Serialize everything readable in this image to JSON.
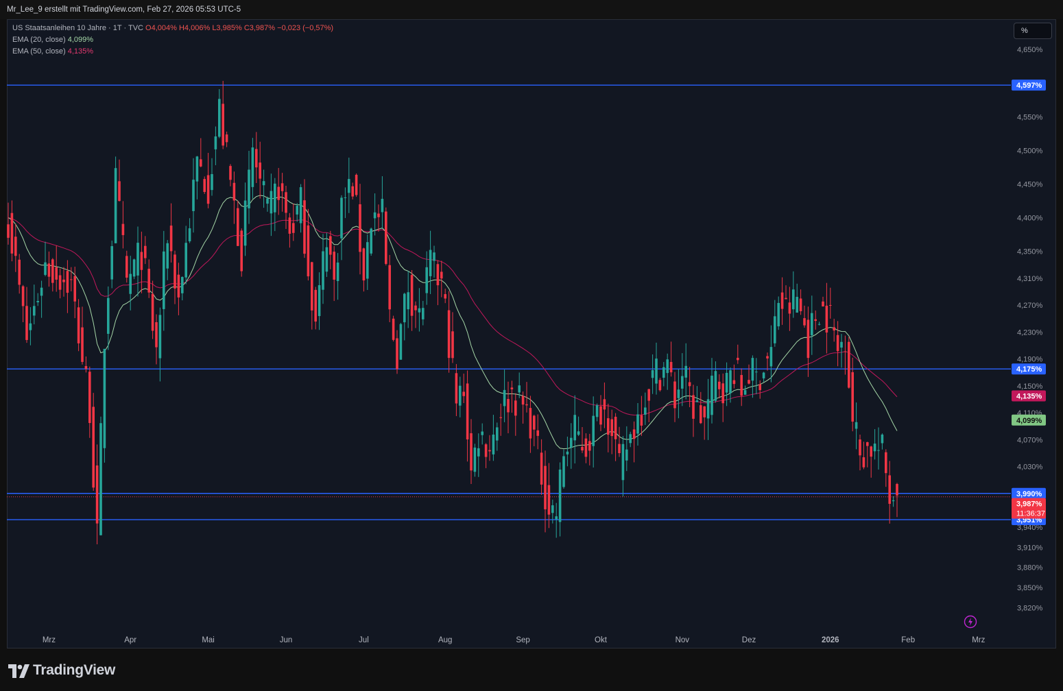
{
  "header": {
    "credit": "Mr_Lee_9 erstellt mit TradingView.com, Feb 27, 2026 05:53 UTC-5"
  },
  "legend": {
    "symbol": "US Staatsanleihen 10 Jahre · 1T · TVC",
    "o": "O4,004%",
    "h": "H4,006%",
    "l": "L3,985%",
    "c": "C3,987%",
    "change": "−0,023 (−0,57%)",
    "ema20_label": "EMA (20, close)",
    "ema20_value": "4,099%",
    "ema50_label": "EMA (50, close)",
    "ema50_value": "4,135%"
  },
  "scale_button": "%",
  "brand": {
    "name": "TradingView"
  },
  "colors": {
    "up": "#26a69a",
    "down": "#f23645",
    "ema20": "#a5d6a7",
    "ema50": "#c2185b",
    "hline": "#2962ff",
    "bg": "#121722"
  },
  "chart_data": {
    "type": "candlestick",
    "title": "US Staatsanleihen 10 Jahre",
    "unit": "%",
    "ylim": [
      3.79,
      4.695
    ],
    "y_ticks": [
      "4,650%",
      "4,550%",
      "4,500%",
      "4,450%",
      "4,400%",
      "4,350%",
      "4,310%",
      "4,270%",
      "4,230%",
      "4,190%",
      "4,150%",
      "4,110%",
      "4,070%",
      "4,030%",
      "3,940%",
      "3,910%",
      "3,880%",
      "3,850%",
      "3,820%"
    ],
    "y_tick_values": [
      4.65,
      4.55,
      4.5,
      4.45,
      4.4,
      4.35,
      4.31,
      4.27,
      4.23,
      4.19,
      4.15,
      4.11,
      4.07,
      4.03,
      3.94,
      3.91,
      3.88,
      3.85,
      3.82
    ],
    "x_labels": [
      {
        "day": 11,
        "label": "Mrz"
      },
      {
        "day": 33,
        "label": "Apr"
      },
      {
        "day": 54,
        "label": "Mai"
      },
      {
        "day": 75,
        "label": "Jun"
      },
      {
        "day": 96,
        "label": "Jul"
      },
      {
        "day": 118,
        "label": "Aug"
      },
      {
        "day": 139,
        "label": "Sep"
      },
      {
        "day": 160,
        "label": "Okt"
      },
      {
        "day": 182,
        "label": "Nov"
      },
      {
        "day": 200,
        "label": "Dez"
      },
      {
        "day": 222,
        "label": "2026"
      },
      {
        "day": 243,
        "label": "Feb"
      },
      {
        "day": 262,
        "label": "Mrz"
      }
    ],
    "horizontal_lines": [
      {
        "value": 4.597,
        "label": "4,597%"
      },
      {
        "value": 4.175,
        "label": "4,175%"
      },
      {
        "value": 3.99,
        "label": "3,990%"
      },
      {
        "value": 3.951,
        "label": "3,951%"
      }
    ],
    "price_labels": [
      {
        "value": 4.135,
        "label": "4,135%",
        "series": "EMA (50, close)"
      },
      {
        "value": 4.099,
        "label": "4,099%",
        "series": "EMA (20, close)"
      },
      {
        "value": 3.987,
        "label": "3,987%",
        "countdown": "11:36:37",
        "series": "last"
      }
    ],
    "close_anchors": [
      [
        0,
        4.4
      ],
      [
        5,
        4.22
      ],
      [
        10,
        4.33
      ],
      [
        17,
        4.3
      ],
      [
        22,
        4.12
      ],
      [
        24,
        3.92
      ],
      [
        26,
        4.22
      ],
      [
        29,
        4.45
      ],
      [
        32,
        4.3
      ],
      [
        36,
        4.35
      ],
      [
        40,
        4.2
      ],
      [
        43,
        4.38
      ],
      [
        46,
        4.28
      ],
      [
        51,
        4.48
      ],
      [
        54,
        4.45
      ],
      [
        57,
        4.56
      ],
      [
        60,
        4.45
      ],
      [
        63,
        4.35
      ],
      [
        66,
        4.5
      ],
      [
        70,
        4.4
      ],
      [
        73,
        4.45
      ],
      [
        76,
        4.38
      ],
      [
        79,
        4.42
      ],
      [
        83,
        4.24
      ],
      [
        86,
        4.38
      ],
      [
        88,
        4.3
      ],
      [
        90,
        4.42
      ],
      [
        93,
        4.45
      ],
      [
        96,
        4.32
      ],
      [
        98,
        4.4
      ],
      [
        101,
        4.4
      ],
      [
        103,
        4.25
      ],
      [
        105,
        4.2
      ],
      [
        108,
        4.3
      ],
      [
        111,
        4.25
      ],
      [
        114,
        4.33
      ],
      [
        117,
        4.3
      ],
      [
        119,
        4.22
      ],
      [
        121,
        4.12
      ],
      [
        123,
        4.15
      ],
      [
        125,
        4.02
      ],
      [
        127,
        4.08
      ],
      [
        130,
        4.06
      ],
      [
        133,
        4.12
      ],
      [
        136,
        4.14
      ],
      [
        139,
        4.12
      ],
      [
        141,
        4.1
      ],
      [
        144,
        4.02
      ],
      [
        146,
        3.97
      ],
      [
        148,
        3.96
      ],
      [
        150,
        4.05
      ],
      [
        153,
        4.08
      ],
      [
        156,
        4.06
      ],
      [
        160,
        4.12
      ],
      [
        163,
        4.1
      ],
      [
        165,
        4.02
      ],
      [
        167,
        4.06
      ],
      [
        169,
        4.09
      ],
      [
        171,
        4.12
      ],
      [
        173,
        4.15
      ],
      [
        175,
        4.17
      ],
      [
        178,
        4.18
      ],
      [
        180,
        4.13
      ],
      [
        182,
        4.17
      ],
      [
        185,
        4.12
      ],
      [
        188,
        4.1
      ],
      [
        191,
        4.16
      ],
      [
        194,
        4.15
      ],
      [
        196,
        4.18
      ],
      [
        198,
        4.14
      ],
      [
        200,
        4.17
      ],
      [
        202,
        4.16
      ],
      [
        204,
        4.18
      ],
      [
        206,
        4.2
      ],
      [
        208,
        4.28
      ],
      [
        210,
        4.26
      ],
      [
        213,
        4.28
      ],
      [
        216,
        4.22
      ],
      [
        219,
        4.27
      ],
      [
        222,
        4.25
      ],
      [
        224,
        4.2
      ],
      [
        226,
        4.23
      ],
      [
        228,
        4.1
      ],
      [
        230,
        4.05
      ],
      [
        233,
        4.06
      ],
      [
        236,
        4.05
      ],
      [
        238,
        3.99
      ],
      [
        240,
        3.987
      ]
    ]
  }
}
